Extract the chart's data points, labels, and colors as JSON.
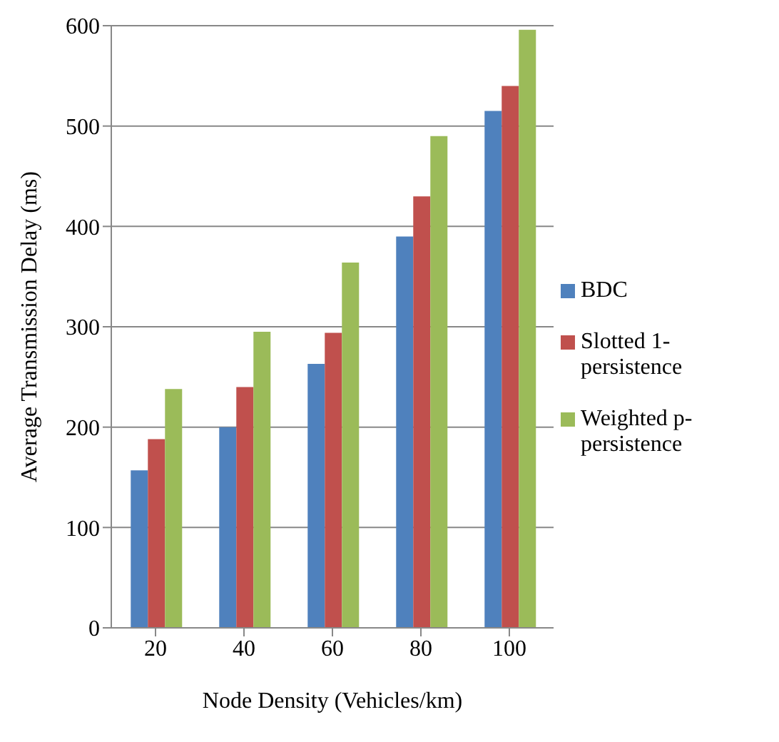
{
  "chart_data": {
    "type": "bar",
    "xlabel": "Node Density (Vehicles/km)",
    "ylabel": "Average Transmission Delay (ms)",
    "categories": [
      "20",
      "40",
      "60",
      "80",
      "100"
    ],
    "series": [
      {
        "name": "BDC",
        "color": "#4f81bd",
        "values": [
          157,
          200,
          263,
          390,
          515
        ]
      },
      {
        "name": "Slotted 1-persistence",
        "color": "#c0504d",
        "values": [
          188,
          240,
          294,
          430,
          540
        ]
      },
      {
        "name": "Weighted p-persistence",
        "color": "#9bbb59",
        "values": [
          238,
          295,
          364,
          490,
          596
        ]
      }
    ],
    "ylim": [
      0,
      600
    ],
    "yticks": [
      0,
      100,
      200,
      300,
      400,
      500,
      600
    ],
    "grid": "y",
    "legend": "right"
  }
}
